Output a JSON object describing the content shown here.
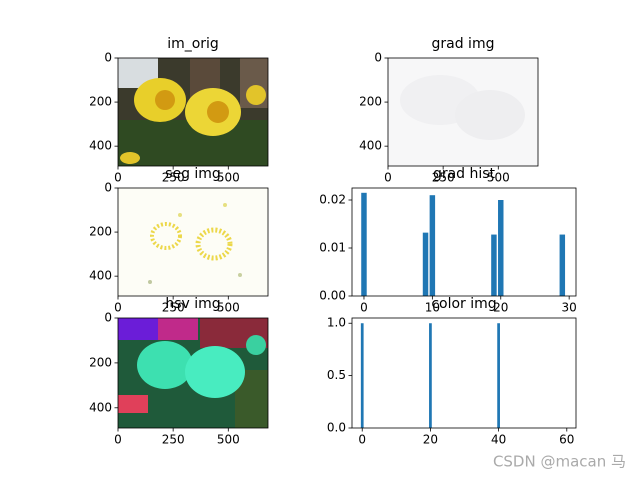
{
  "chart_data": [
    {
      "type": "image",
      "title": "im_orig",
      "xlim": [
        0,
        680
      ],
      "ylim": [
        490,
        0
      ],
      "xticks": [
        0,
        250,
        500
      ],
      "yticks": [
        0,
        200,
        400
      ]
    },
    {
      "type": "image",
      "title": "grad img",
      "xlim": [
        0,
        680
      ],
      "ylim": [
        490,
        0
      ],
      "xticks": [
        0,
        250,
        500
      ],
      "yticks": [
        0,
        200,
        400
      ]
    },
    {
      "type": "image",
      "title": "seg img",
      "xlim": [
        0,
        680
      ],
      "ylim": [
        490,
        0
      ],
      "xticks": [
        0,
        250,
        500
      ],
      "yticks": [
        0,
        200,
        400
      ]
    },
    {
      "type": "bar",
      "title": "grad hist",
      "x": [
        0,
        9,
        10,
        19,
        20,
        29
      ],
      "values": [
        0.0215,
        0.0132,
        0.021,
        0.0128,
        0.02,
        0.0128
      ],
      "color": "#1f77b4",
      "xlim": [
        -1.75,
        31.0
      ],
      "ylim": [
        0,
        0.0225
      ],
      "xticks": [
        0,
        10,
        20,
        30
      ],
      "yticks": [
        {
          "value": 0,
          "label": "0.00"
        },
        {
          "value": 0.01,
          "label": "0.01"
        },
        {
          "value": 0.02,
          "label": "0.02"
        }
      ]
    },
    {
      "type": "image",
      "title": "hsv img",
      "xlim": [
        0,
        680
      ],
      "ylim": [
        490,
        0
      ],
      "xticks": [
        0,
        250,
        500
      ],
      "yticks": [
        0,
        200,
        400
      ]
    },
    {
      "type": "bar",
      "title": "color img",
      "x": [
        0,
        20,
        40
      ],
      "values": [
        1.0,
        1.0,
        1.0
      ],
      "color": "#1f77b4",
      "xlim": [
        -3,
        62.7
      ],
      "ylim": [
        0,
        1.05
      ],
      "xticks": [
        0,
        20,
        40,
        60
      ],
      "yticks": [
        {
          "value": 0,
          "label": "0.0"
        },
        {
          "value": 0.5,
          "label": "0.5"
        },
        {
          "value": 1.0,
          "label": "1.0"
        }
      ]
    }
  ],
  "watermark": "CSDN @macan 马"
}
